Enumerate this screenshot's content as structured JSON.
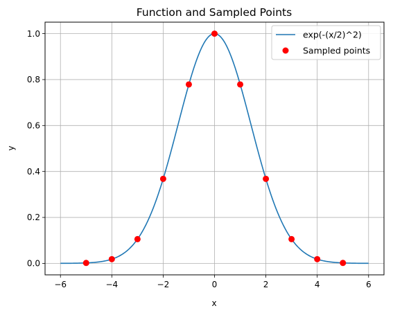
{
  "chart_data": {
    "type": "line",
    "title": "Function and Sampled Points",
    "xlabel": "x",
    "ylabel": "y",
    "xlim": [
      -6.6,
      6.6
    ],
    "ylim": [
      -0.05,
      1.05
    ],
    "x_ticks": [
      -6,
      -4,
      -2,
      0,
      2,
      4,
      6
    ],
    "x_tick_labels": [
      "−6",
      "−4",
      "−2",
      "0",
      "2",
      "4",
      "6"
    ],
    "y_ticks": [
      0.0,
      0.2,
      0.4,
      0.6,
      0.8,
      1.0
    ],
    "y_tick_labels": [
      "0.0",
      "0.2",
      "0.4",
      "0.6",
      "0.8",
      "1.0"
    ],
    "grid": true,
    "legend_position": "top-right",
    "series": [
      {
        "name": "exp(-(x/2)^2)",
        "type": "line",
        "color": "#1f77b4",
        "x_range": [
          -6,
          6
        ],
        "function": "exp(-(x/2)^2)"
      },
      {
        "name": "Sampled points",
        "type": "scatter",
        "color": "#ff0000",
        "x": [
          -5,
          -4,
          -3,
          -2,
          -1,
          0,
          1,
          2,
          3,
          4,
          5
        ],
        "y": [
          0.0019,
          0.0183,
          0.1054,
          0.3679,
          0.7788,
          1.0,
          0.7788,
          0.3679,
          0.1054,
          0.0183,
          0.0019
        ]
      }
    ]
  }
}
